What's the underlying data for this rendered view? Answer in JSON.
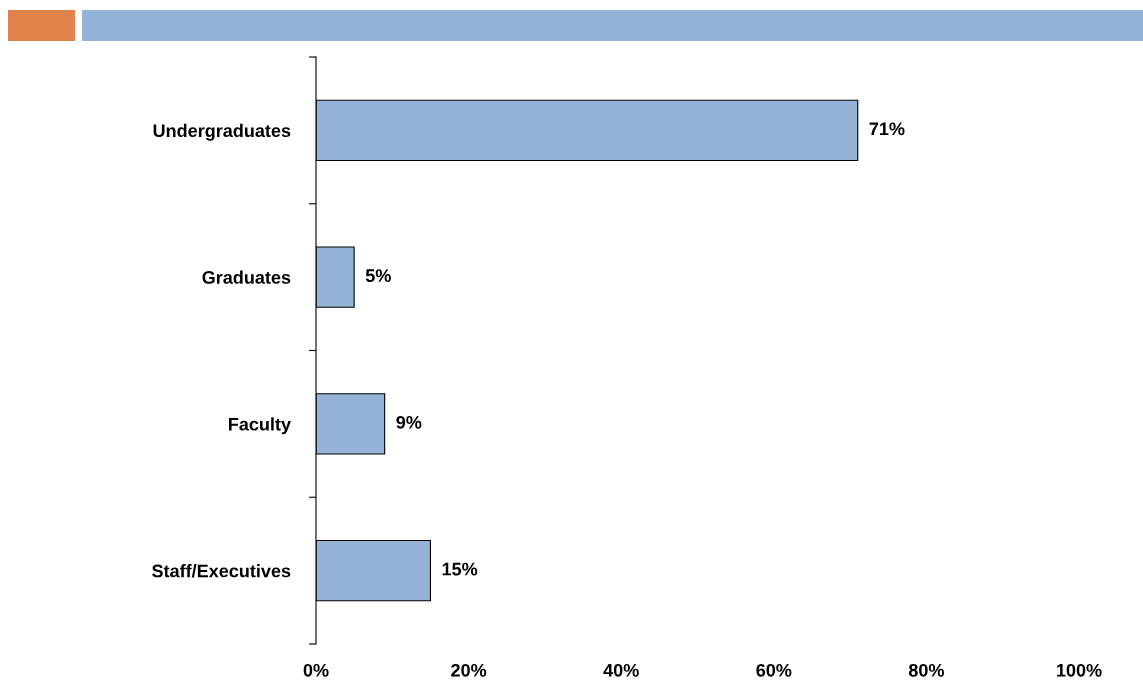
{
  "chart_data": {
    "type": "bar",
    "orientation": "horizontal",
    "categories": [
      "Undergraduates",
      "Graduates",
      "Faculty",
      "Staff/Executives"
    ],
    "values": [
      71,
      5,
      9,
      15
    ],
    "color": "#95b3d7",
    "value_labels": [
      "71%",
      "5%",
      "9%",
      "15%"
    ],
    "xlim": [
      0,
      100
    ],
    "xticks": [
      {
        "value": 0,
        "label": "0%"
      },
      {
        "value": 20,
        "label": "20%"
      },
      {
        "value": 40,
        "label": "40%"
      },
      {
        "value": 60,
        "label": "60%"
      },
      {
        "value": 80,
        "label": "80%"
      },
      {
        "value": 100,
        "label": "100%"
      }
    ],
    "grid": false,
    "legend": false
  }
}
